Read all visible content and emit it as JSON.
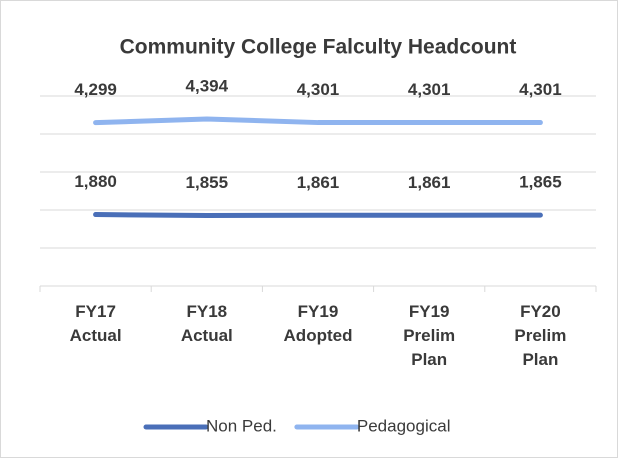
{
  "chart_data": {
    "type": "line",
    "title": "Community College Falculty Headcount",
    "categories": [
      "FY17 Actual",
      "FY18 Actual",
      "FY19 Adopted",
      "FY19 Prelim Plan",
      "FY20 Prelim Plan"
    ],
    "series": [
      {
        "name": "Non Ped.",
        "color": "#4a6fb8",
        "values": [
          1880,
          1855,
          1861,
          1861,
          1865
        ],
        "value_labels": [
          "1,880",
          "1,855",
          "1,861",
          "1,861",
          "1,865"
        ]
      },
      {
        "name": "Pedagogical",
        "color": "#8fb4ef",
        "values": [
          4299,
          4394,
          4301,
          4301,
          4301
        ],
        "value_labels": [
          "4,299",
          "4,394",
          "4,301",
          "4,301",
          "4,301"
        ]
      }
    ],
    "ylim": [
      0,
      5000
    ],
    "yticks": [
      0,
      1000,
      2000,
      3000,
      4000,
      5000
    ],
    "grid": true
  }
}
